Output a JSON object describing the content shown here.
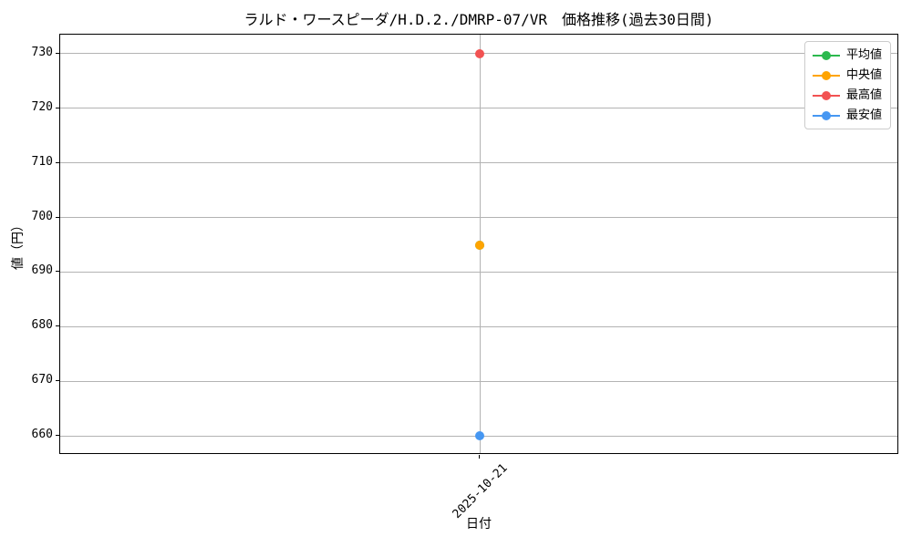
{
  "chart_data": {
    "type": "line",
    "title": "ラルド・ワースピーダ/H.D.2./DMRP-07/VR　価格推移(過去30日間)",
    "xlabel": "日付",
    "ylabel": "値（円）",
    "x": [
      "2025-10-21"
    ],
    "series": [
      {
        "name": "平均値",
        "color": "#2cb94e",
        "values": [
          695
        ]
      },
      {
        "name": "中央値",
        "color": "#ffa400",
        "values": [
          695
        ]
      },
      {
        "name": "最高値",
        "color": "#f25252",
        "values": [
          730
        ]
      },
      {
        "name": "最安値",
        "color": "#4697f2",
        "values": [
          660
        ]
      }
    ],
    "yticks": [
      660,
      670,
      680,
      690,
      700,
      710,
      720,
      730
    ],
    "ylim": [
      656.5,
      733.5
    ],
    "grid": true,
    "legend_position": "upper right"
  }
}
